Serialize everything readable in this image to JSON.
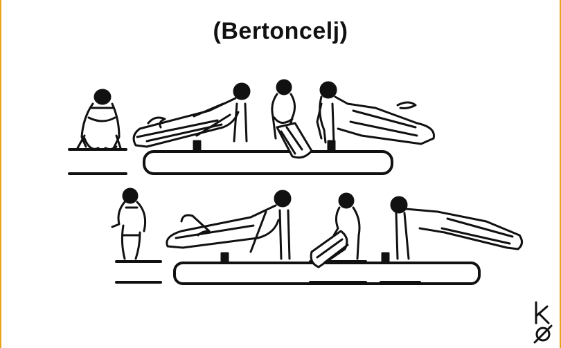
{
  "diagram": {
    "title": "(Bertoncelj)",
    "ink_color": "#111111",
    "frame_color": "#e8a51a",
    "logo": "k"
  }
}
